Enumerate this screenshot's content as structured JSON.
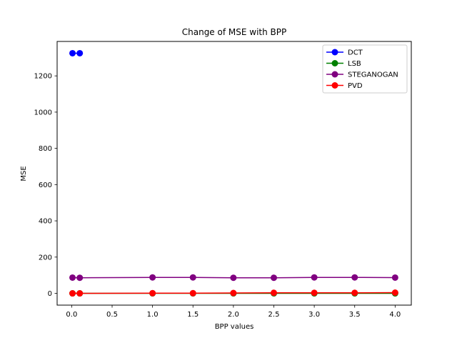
{
  "chart_data": {
    "type": "line",
    "title": "Change of MSE with BPP",
    "xlabel": "BPP values",
    "ylabel": "MSE",
    "xlim": [
      -0.18,
      4.2
    ],
    "ylim": [
      -65,
      1390
    ],
    "xticks": [
      0.0,
      0.5,
      1.0,
      1.5,
      2.0,
      2.5,
      3.0,
      3.5,
      4.0
    ],
    "xtick_labels": [
      "0.0",
      "0.5",
      "1.0",
      "1.5",
      "2.0",
      "2.5",
      "3.0",
      "3.5",
      "4.0"
    ],
    "yticks": [
      0,
      200,
      400,
      600,
      800,
      1000,
      1200
    ],
    "ytick_labels": [
      "0",
      "200",
      "400",
      "600",
      "800",
      "1000",
      "1200"
    ],
    "grid": false,
    "legend_position": "top-right",
    "series": [
      {
        "name": "DCT",
        "color": "#0000ff",
        "marker": "circle",
        "x": [
          0.01,
          0.1
        ],
        "y": [
          1325,
          1325
        ]
      },
      {
        "name": "LSB",
        "color": "#008000",
        "marker": "circle",
        "x": [
          0.01,
          0.1,
          1.0,
          1.5,
          2.0,
          2.5,
          3.0,
          3.5,
          4.0
        ],
        "y": [
          0,
          0,
          0,
          0,
          0,
          0,
          0,
          0,
          0
        ]
      },
      {
        "name": "STEGANOGAN",
        "color": "#800080",
        "marker": "circle",
        "x": [
          0.01,
          0.1,
          1.0,
          1.5,
          2.0,
          2.5,
          3.0,
          3.5,
          4.0
        ],
        "y": [
          87,
          86,
          88,
          88,
          86,
          86,
          88,
          88,
          87
        ]
      },
      {
        "name": "PVD",
        "color": "#ff0000",
        "marker": "circle",
        "x": [
          0.01,
          0.1,
          1.0,
          1.5,
          2.0,
          2.5,
          3.0,
          3.5,
          4.0
        ],
        "y": [
          0,
          0,
          1,
          1,
          2,
          3,
          3,
          3,
          4
        ]
      }
    ]
  }
}
